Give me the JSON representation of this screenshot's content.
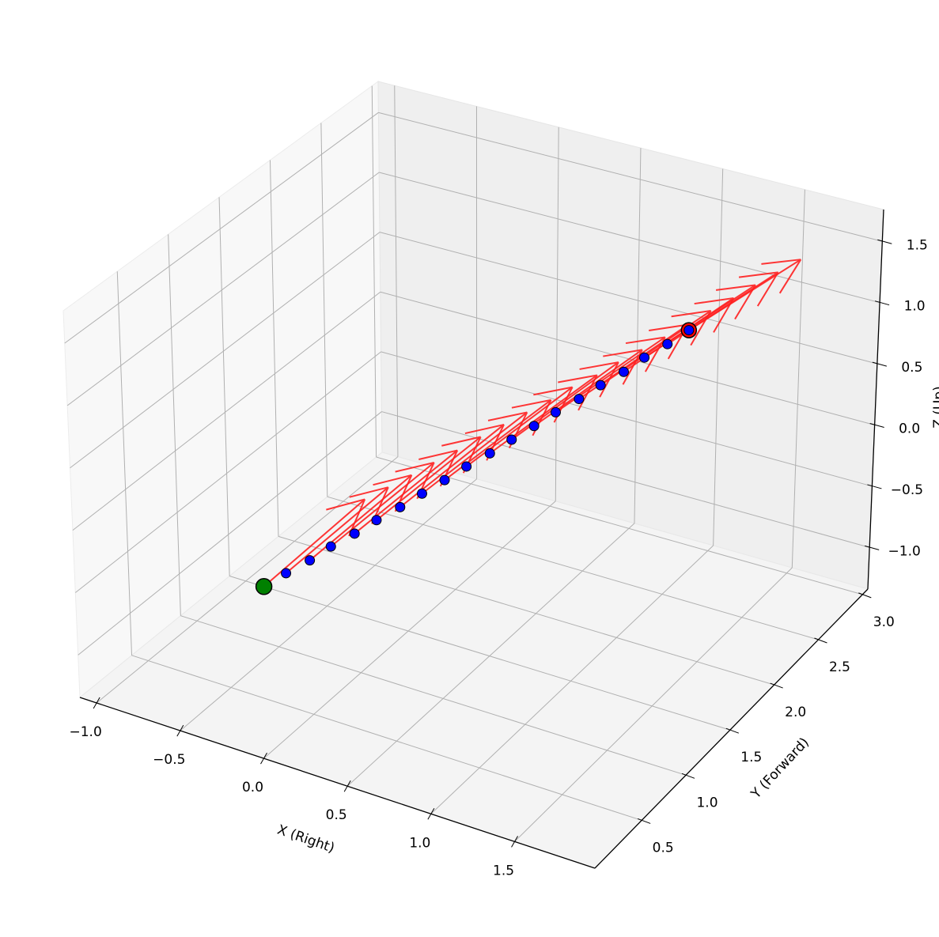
{
  "chart_data": {
    "type": "scatter",
    "projection": "3d",
    "xlabel": "X (Right)",
    "ylabel": "Y (Forward)",
    "zlabel": "Z (Up)",
    "xlim": [
      -1.1,
      1.98
    ],
    "ylim": [
      -0.03,
      3.06
    ],
    "zlim": [
      -1.34,
      1.76
    ],
    "xticks": [
      -1.0,
      -0.5,
      0.0,
      0.5,
      1.0,
      1.5
    ],
    "yticks": [
      0.5,
      1.0,
      1.5,
      2.0,
      2.5,
      3.0
    ],
    "zticks": [
      -1.0,
      -0.5,
      0.0,
      0.5,
      1.0,
      1.5
    ],
    "xtick_labels": [
      "−1.0",
      "−0.5",
      "0.0",
      "0.5",
      "1.0",
      "1.5"
    ],
    "ytick_labels": [
      "0.5",
      "1.0",
      "1.5",
      "2.0",
      "2.5",
      "3.0"
    ],
    "ztick_labels": [
      "−1.0",
      "−0.5",
      "0.0",
      "0.5",
      "1.0",
      "1.5"
    ],
    "grid": true,
    "points": {
      "x": [
        0,
        0.04,
        0.09,
        0.13,
        0.18,
        0.22,
        0.27,
        0.31,
        0.36,
        0.4,
        0.45,
        0.49,
        0.54,
        0.58,
        0.63,
        0.67,
        0.72,
        0.76,
        0.81,
        0.85
      ],
      "y": [
        0,
        0.16,
        0.32,
        0.47,
        0.63,
        0.79,
        0.95,
        1.11,
        1.26,
        1.42,
        1.58,
        1.74,
        1.89,
        2.05,
        2.21,
        2.37,
        2.53,
        2.68,
        2.84,
        3.0
      ],
      "z": [
        0,
        0.02,
        0.04,
        0.07,
        0.09,
        0.11,
        0.13,
        0.15,
        0.18,
        0.2,
        0.22,
        0.24,
        0.27,
        0.29,
        0.31,
        0.33,
        0.35,
        0.38,
        0.4,
        0.42
      ]
    },
    "orientation_vectors": {
      "u": [
        0.1,
        0.12,
        0.13,
        0.15,
        0.16,
        0.18,
        0.19,
        0.21,
        0.23,
        0.24,
        0.26,
        0.27,
        0.29,
        0.31,
        0.32,
        0.34,
        0.35,
        0.37,
        0.38,
        0.4
      ],
      "v": [
        0.88,
        0.86,
        0.84,
        0.82,
        0.8,
        0.78,
        0.76,
        0.74,
        0.72,
        0.7,
        0.68,
        0.66,
        0.64,
        0.62,
        0.6,
        0.58,
        0.56,
        0.54,
        0.52,
        0.5
      ],
      "w": [
        0.17,
        0.18,
        0.19,
        0.2,
        0.21,
        0.23,
        0.24,
        0.25,
        0.26,
        0.27,
        0.28,
        0.29,
        0.3,
        0.31,
        0.32,
        0.34,
        0.35,
        0.36,
        0.37,
        0.38
      ]
    },
    "start": {
      "x": 0,
      "y": 0,
      "z": 0
    },
    "end": {
      "x": 0.85,
      "y": 3.0,
      "z": 0.42
    },
    "colors": {
      "points": "#0000ff",
      "start": "#008000",
      "end": "#ff0000",
      "arrows": "#ff2020",
      "grid": "#b0b0b0"
    }
  }
}
